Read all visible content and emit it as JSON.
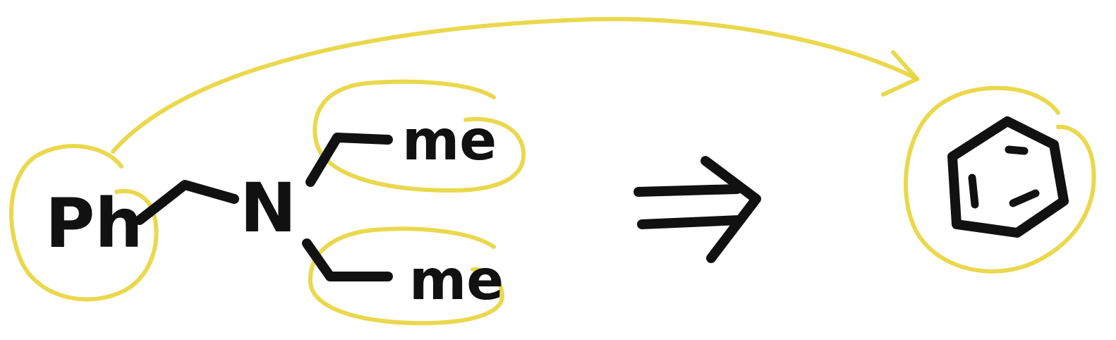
{
  "labels": {
    "phenyl": "Ph",
    "nitrogen": "N",
    "methyl_top": "me",
    "methyl_bottom": "me"
  },
  "colors": {
    "ink": "#111111",
    "highlight": "#e8d43a"
  }
}
